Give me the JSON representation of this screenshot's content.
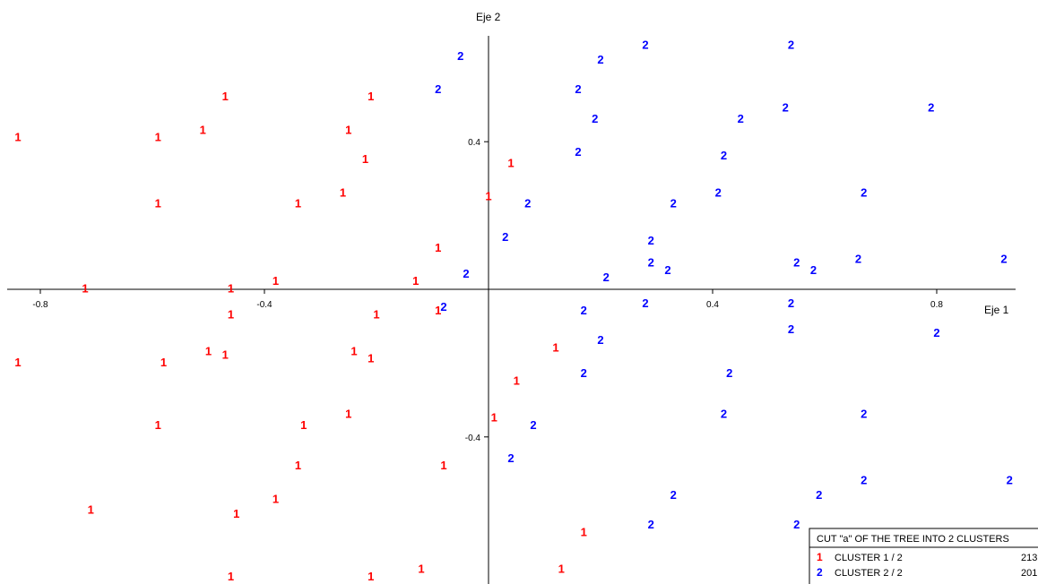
{
  "chart_data": {
    "type": "scatter",
    "xlabel": "Eje 1",
    "ylabel": "Eje 2",
    "x_ticks": [
      -0.8,
      -0.4,
      0.4,
      0.8
    ],
    "y_ticks": [
      0.4,
      -0.4
    ],
    "xlim": [
      -0.87,
      0.95
    ],
    "ylim": [
      -0.8,
      0.67
    ],
    "grid": false,
    "series": [
      {
        "name": "1",
        "color": "#ff0000",
        "points": [
          [
            -0.84,
            0.41
          ],
          [
            -0.59,
            0.41
          ],
          [
            -0.51,
            0.43
          ],
          [
            -0.47,
            0.52
          ],
          [
            -0.25,
            0.43
          ],
          [
            -0.21,
            0.52
          ],
          [
            -0.22,
            0.35
          ],
          [
            -0.26,
            0.26
          ],
          [
            -0.59,
            0.23
          ],
          [
            -0.34,
            0.23
          ],
          [
            0.04,
            0.34
          ],
          [
            0.0,
            0.25
          ],
          [
            -0.09,
            0.11
          ],
          [
            -0.38,
            0.02
          ],
          [
            -0.13,
            0.02
          ],
          [
            -0.72,
            0.0
          ],
          [
            -0.46,
            0.0
          ],
          [
            -0.46,
            -0.07
          ],
          [
            -0.2,
            -0.07
          ],
          [
            -0.09,
            -0.06
          ],
          [
            -0.84,
            -0.2
          ],
          [
            -0.58,
            -0.2
          ],
          [
            -0.5,
            -0.17
          ],
          [
            -0.47,
            -0.18
          ],
          [
            -0.24,
            -0.17
          ],
          [
            -0.21,
            -0.19
          ],
          [
            0.12,
            -0.16
          ],
          [
            0.05,
            -0.25
          ],
          [
            -0.59,
            -0.37
          ],
          [
            -0.33,
            -0.37
          ],
          [
            -0.25,
            -0.34
          ],
          [
            0.01,
            -0.35
          ],
          [
            -0.34,
            -0.48
          ],
          [
            -0.08,
            -0.48
          ],
          [
            -0.71,
            -0.6
          ],
          [
            -0.45,
            -0.61
          ],
          [
            -0.38,
            -0.57
          ],
          [
            0.17,
            -0.66
          ],
          [
            -0.46,
            -0.78
          ],
          [
            -0.21,
            -0.78
          ],
          [
            -0.12,
            -0.76
          ],
          [
            0.13,
            -0.76
          ]
        ]
      },
      {
        "name": "2",
        "color": "#0000ff",
        "points": [
          [
            -0.05,
            0.63
          ],
          [
            0.2,
            0.62
          ],
          [
            0.28,
            0.66
          ],
          [
            0.54,
            0.66
          ],
          [
            -0.09,
            0.54
          ],
          [
            0.16,
            0.54
          ],
          [
            0.19,
            0.46
          ],
          [
            0.45,
            0.46
          ],
          [
            0.53,
            0.49
          ],
          [
            0.79,
            0.49
          ],
          [
            0.16,
            0.37
          ],
          [
            0.42,
            0.36
          ],
          [
            0.07,
            0.23
          ],
          [
            0.33,
            0.23
          ],
          [
            0.41,
            0.26
          ],
          [
            0.67,
            0.26
          ],
          [
            0.03,
            0.14
          ],
          [
            0.29,
            0.13
          ],
          [
            -0.04,
            0.04
          ],
          [
            0.21,
            0.03
          ],
          [
            0.29,
            0.07
          ],
          [
            0.32,
            0.05
          ],
          [
            0.55,
            0.07
          ],
          [
            0.58,
            0.05
          ],
          [
            0.66,
            0.08
          ],
          [
            0.92,
            0.08
          ],
          [
            -0.08,
            -0.05
          ],
          [
            0.17,
            -0.06
          ],
          [
            0.28,
            -0.04
          ],
          [
            0.54,
            -0.04
          ],
          [
            0.2,
            -0.14
          ],
          [
            0.54,
            -0.11
          ],
          [
            0.8,
            -0.12
          ],
          [
            0.17,
            -0.23
          ],
          [
            0.43,
            -0.23
          ],
          [
            0.42,
            -0.34
          ],
          [
            0.67,
            -0.34
          ],
          [
            0.08,
            -0.37
          ],
          [
            0.04,
            -0.46
          ],
          [
            0.33,
            -0.56
          ],
          [
            0.59,
            -0.56
          ],
          [
            0.67,
            -0.52
          ],
          [
            0.93,
            -0.52
          ],
          [
            0.29,
            -0.64
          ],
          [
            0.55,
            -0.64
          ]
        ]
      }
    ],
    "legend": {
      "title": "CUT \"a\" OF THE TREE INTO  2 CLUSTERS",
      "entries": [
        {
          "marker": "1",
          "label": "CLUSTER  1 / 2",
          "count": "213",
          "color": "#ff0000"
        },
        {
          "marker": "2",
          "label": "CLUSTER  2 / 2",
          "count": "201",
          "color": "#0000ff"
        }
      ],
      "placement": "bottom-right"
    }
  }
}
